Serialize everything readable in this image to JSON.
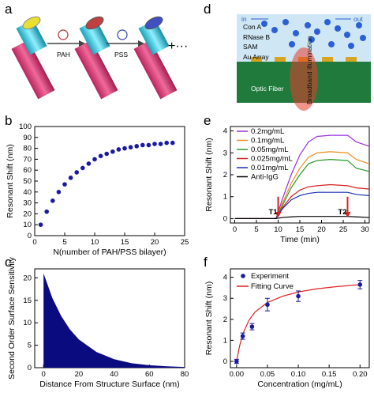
{
  "panels": {
    "a": "a",
    "b": "b",
    "c": "c",
    "d": "d",
    "e": "e",
    "f": "f"
  },
  "schematic_a": {
    "step1": "PAH",
    "step2": "PSS",
    "continuation": "+···"
  },
  "schematic_d": {
    "in": "in",
    "out": "out",
    "layers": [
      "Con A",
      "RNase B",
      "SAM",
      "Au Array"
    ],
    "fiber": "Optic Fiber",
    "illumination": "Broadband illumination",
    "colors": {
      "fluid": "#cfe6f5",
      "fiber": "#1f7a3c",
      "gold": "#d9a520",
      "conA": "#2a5fd6",
      "glow": "#e83a2a"
    }
  },
  "chart_data": [
    {
      "panel": "b",
      "type": "scatter",
      "xlabel": "N(number of PAH/PSS bilayer)",
      "ylabel": "Resonant Shift (nm)",
      "xlim": [
        0,
        25
      ],
      "ylim": [
        0,
        100
      ],
      "xticks": [
        0,
        5,
        10,
        15,
        20,
        25
      ],
      "yticks": [
        0,
        10,
        20,
        30,
        40,
        50,
        60,
        70,
        80,
        90,
        100
      ],
      "color": "#1a1aa0",
      "x": [
        1,
        2,
        3,
        4,
        5,
        6,
        7,
        8,
        9,
        10,
        11,
        12,
        13,
        14,
        15,
        16,
        17,
        18,
        19,
        20,
        21,
        22,
        23
      ],
      "y": [
        10,
        22,
        32,
        40,
        47,
        53,
        58,
        62,
        66,
        70,
        73,
        75,
        77,
        79,
        80,
        81,
        82,
        83,
        83,
        84,
        84,
        85,
        85
      ]
    },
    {
      "panel": "c",
      "type": "area",
      "xlabel": "Distance From Structure Surface (nm)",
      "ylabel": "Second Order Surface Sensitivity",
      "xlim": [
        -5,
        80
      ],
      "ylim": [
        0,
        22
      ],
      "xticks": [
        0,
        20,
        40,
        60,
        80
      ],
      "yticks": [
        0,
        5,
        10,
        15,
        20
      ],
      "color": "#0b0b80",
      "x": [
        0,
        5,
        10,
        15,
        20,
        30,
        40,
        50,
        60,
        70,
        80
      ],
      "y": [
        21,
        15.5,
        11.5,
        8.5,
        6.3,
        3.5,
        1.9,
        1.0,
        0.55,
        0.3,
        0.15
      ]
    },
    {
      "panel": "e",
      "type": "line",
      "xlabel": "Time (min)",
      "ylabel": "Resonant Shift (nm)",
      "xlim": [
        -1,
        31
      ],
      "ylim": [
        -0.2,
        4.2
      ],
      "xticks": [
        0,
        5,
        10,
        15,
        20,
        25,
        30
      ],
      "yticks": [
        0,
        1,
        2,
        3,
        4
      ],
      "x": [
        0,
        9.5,
        11,
        13,
        15,
        17,
        19,
        22,
        26,
        28,
        31
      ],
      "series": [
        {
          "name": "0.2mg/mL",
          "color": "#9b30e0",
          "values": [
            0,
            0,
            0.9,
            2.0,
            2.9,
            3.5,
            3.75,
            3.8,
            3.8,
            3.5,
            3.3
          ]
        },
        {
          "name": "0.1mg/mL",
          "color": "#f08c1e",
          "values": [
            0,
            0,
            0.7,
            1.6,
            2.3,
            2.8,
            3.0,
            3.05,
            3.0,
            2.7,
            2.5
          ]
        },
        {
          "name": "0.05mg/mL",
          "color": "#2a9a2a",
          "values": [
            0,
            0,
            0.6,
            1.4,
            2.0,
            2.5,
            2.65,
            2.7,
            2.65,
            2.3,
            2.15
          ]
        },
        {
          "name": "0.025mg/mL",
          "color": "#d42020",
          "values": [
            0,
            0,
            0.5,
            1.0,
            1.3,
            1.45,
            1.5,
            1.55,
            1.5,
            1.4,
            1.35
          ]
        },
        {
          "name": "0.01mg/mL",
          "color": "#1c2fb8",
          "values": [
            0,
            0,
            0.45,
            0.85,
            1.05,
            1.15,
            1.2,
            1.2,
            1.2,
            1.1,
            1.05
          ]
        },
        {
          "name": "Anti-IgG",
          "color": "#000000",
          "values": [
            0,
            0,
            0.05,
            0.08,
            0.1,
            0.1,
            0.1,
            0.1,
            0.1,
            0.08,
            0.05
          ]
        }
      ],
      "annotations": [
        {
          "label": "T1",
          "x": 10,
          "color": "#e02020"
        },
        {
          "label": "T2",
          "x": 26,
          "color": "#e02020"
        }
      ]
    },
    {
      "panel": "f",
      "type": "scatter",
      "xlabel": "Concentration (mg/mL)",
      "ylabel": "Resonant Shift (nm)",
      "xlim": [
        -0.01,
        0.215
      ],
      "ylim": [
        -0.3,
        4.4
      ],
      "xticks": [
        0.0,
        0.05,
        0.1,
        0.15,
        0.2
      ],
      "yticks": [
        0,
        1,
        2,
        3,
        4
      ],
      "legend": [
        "Experiment",
        "Fitting Curve"
      ],
      "legend_position": "top-left",
      "points": {
        "x": [
          0,
          0.01,
          0.025,
          0.05,
          0.1,
          0.2
        ],
        "y": [
          0,
          1.2,
          1.65,
          2.7,
          3.1,
          3.65
        ],
        "err": [
          0.1,
          0.15,
          0.15,
          0.3,
          0.25,
          0.2
        ],
        "color": "#1a1aa0"
      },
      "fit": {
        "color": "#e02020",
        "x": [
          0,
          0.005,
          0.01,
          0.02,
          0.03,
          0.05,
          0.075,
          0.1,
          0.13,
          0.16,
          0.2
        ],
        "y": [
          0,
          0.75,
          1.3,
          1.95,
          2.35,
          2.8,
          3.1,
          3.3,
          3.45,
          3.55,
          3.65
        ]
      }
    }
  ]
}
